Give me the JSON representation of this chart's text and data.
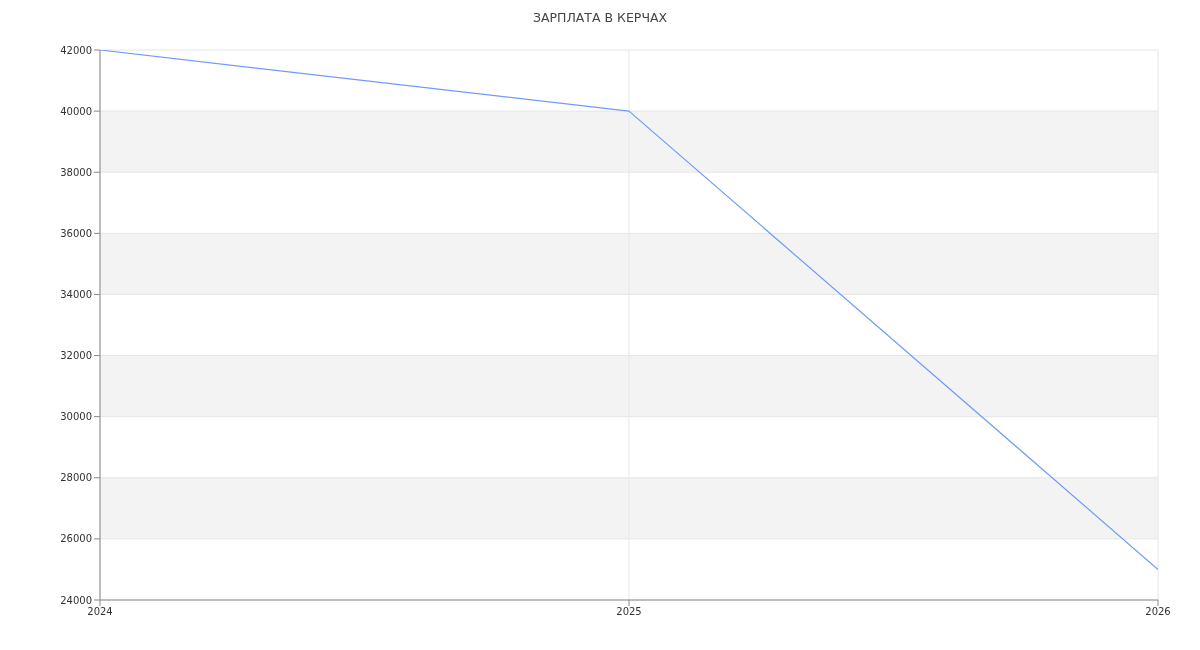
{
  "chart_data": {
    "type": "line",
    "title": "ЗАРПЛАТА В КЕРЧАХ",
    "x": [
      2024,
      2025,
      2026
    ],
    "series": [
      {
        "color": "#6e9cf7",
        "values": [
          42000,
          40000,
          25000
        ]
      }
    ],
    "xlim": [
      2024,
      2026
    ],
    "xticks": [
      2024,
      2025,
      2026
    ],
    "ylim": [
      24000,
      42000
    ],
    "yticks": [
      24000,
      26000,
      28000,
      30000,
      32000,
      34000,
      36000,
      38000,
      40000,
      42000
    ],
    "grid": true,
    "marker": "none",
    "line_style": "solid"
  }
}
